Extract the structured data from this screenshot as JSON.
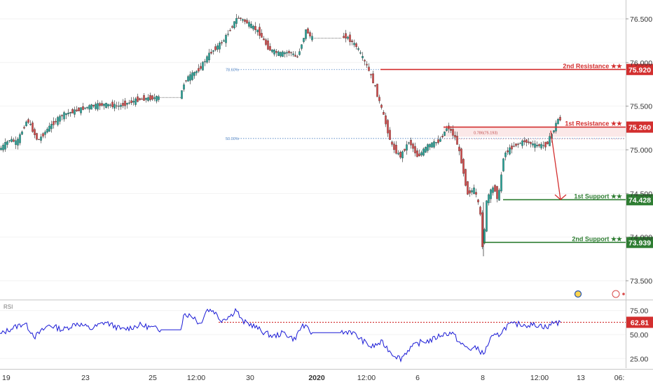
{
  "chart_data": [
    {
      "type": "candlestick",
      "title": "",
      "xlabel": "",
      "ylabel": "",
      "ylim": [
        73.3,
        76.7
      ],
      "y_ticks": [
        "76.500",
        "76.000",
        "75.500",
        "75.000",
        "74.500",
        "74.000",
        "73.500"
      ],
      "y_tick_values": [
        76.5,
        76.0,
        75.5,
        75.0,
        74.5,
        74.0,
        73.5
      ],
      "x_ticks": [
        "19",
        "23",
        "25",
        "12:00",
        "30",
        "2020",
        "12:00",
        "6",
        "8",
        "12:00",
        "13",
        "06:"
      ],
      "x_tick_index": [
        3,
        122,
        218,
        280,
        357,
        452,
        523,
        596,
        689,
        770,
        829,
        884
      ],
      "x_range": [
        0,
        932
      ],
      "price_path": [
        {
          "i": 0,
          "v": 75.0
        },
        {
          "i": 15,
          "v": 75.12
        },
        {
          "i": 25,
          "v": 75.08
        },
        {
          "i": 40,
          "v": 75.35
        },
        {
          "i": 55,
          "v": 75.1
        },
        {
          "i": 70,
          "v": 75.25
        },
        {
          "i": 90,
          "v": 75.4
        },
        {
          "i": 110,
          "v": 75.45
        },
        {
          "i": 130,
          "v": 75.5
        },
        {
          "i": 150,
          "v": 75.52
        },
        {
          "i": 170,
          "v": 75.5
        },
        {
          "i": 200,
          "v": 75.58
        },
        {
          "i": 230,
          "v": 75.6
        },
        {
          "i": 258,
          "v": 75.6
        },
        {
          "i": 265,
          "v": 75.8
        },
        {
          "i": 285,
          "v": 75.92
        },
        {
          "i": 300,
          "v": 76.1
        },
        {
          "i": 320,
          "v": 76.25
        },
        {
          "i": 340,
          "v": 76.52
        },
        {
          "i": 355,
          "v": 76.45
        },
        {
          "i": 370,
          "v": 76.35
        },
        {
          "i": 385,
          "v": 76.15
        },
        {
          "i": 400,
          "v": 76.1
        },
        {
          "i": 415,
          "v": 76.12
        },
        {
          "i": 425,
          "v": 76.05
        },
        {
          "i": 438,
          "v": 76.38
        },
        {
          "i": 445,
          "v": 76.28
        },
        {
          "i": 487,
          "v": 76.28
        },
        {
          "i": 495,
          "v": 76.3
        },
        {
          "i": 510,
          "v": 76.18
        },
        {
          "i": 525,
          "v": 75.95
        },
        {
          "i": 535,
          "v": 75.75
        },
        {
          "i": 548,
          "v": 75.4
        },
        {
          "i": 560,
          "v": 75.05
        },
        {
          "i": 572,
          "v": 74.92
        },
        {
          "i": 585,
          "v": 75.1
        },
        {
          "i": 597,
          "v": 74.92
        },
        {
          "i": 612,
          "v": 75.05
        },
        {
          "i": 628,
          "v": 75.1
        },
        {
          "i": 640,
          "v": 75.27
        },
        {
          "i": 652,
          "v": 75.12
        },
        {
          "i": 660,
          "v": 74.85
        },
        {
          "i": 668,
          "v": 74.5
        },
        {
          "i": 678,
          "v": 74.55
        },
        {
          "i": 686,
          "v": 74.3
        },
        {
          "i": 690,
          "v": 73.85
        },
        {
          "i": 696,
          "v": 74.45
        },
        {
          "i": 706,
          "v": 74.58
        },
        {
          "i": 712,
          "v": 74.42
        },
        {
          "i": 720,
          "v": 74.95
        },
        {
          "i": 735,
          "v": 75.05
        },
        {
          "i": 750,
          "v": 75.1
        },
        {
          "i": 765,
          "v": 75.05
        },
        {
          "i": 780,
          "v": 75.05
        },
        {
          "i": 790,
          "v": 75.2
        },
        {
          "i": 797,
          "v": 75.35
        }
      ],
      "levels": [
        {
          "label": "2nd Resistance ★★",
          "value": 75.92,
          "value_label": "75.920",
          "color": "#d32f2f",
          "from_i": 543
        },
        {
          "label": "1st Resistance ★★",
          "value": 75.26,
          "value_label": "75.260",
          "color": "#d32f2f",
          "from_i": 633
        },
        {
          "label": "1st Support ★★",
          "value": 74.428,
          "value_label": "74.428",
          "color": "#2e7d32",
          "from_i": 718
        },
        {
          "label": "2nd Support ★★",
          "value": 73.939,
          "value_label": "73.939",
          "color": "#2e7d32",
          "from_i": 690
        }
      ],
      "fib_levels": [
        {
          "label": "78.60%",
          "value": 75.92,
          "from_i": 340
        },
        {
          "label": "50.00%",
          "value": 75.13,
          "from_i": 340
        }
      ],
      "zone": {
        "label": "0.786(75.193)",
        "top": 75.26,
        "bottom": 75.15,
        "from_i": 633
      },
      "projection": {
        "from_i": 786,
        "from_v": 75.22,
        "to_i": 800,
        "to_v": 74.43,
        "color": "#d32f2f"
      },
      "up_color": "#26a69a",
      "down_color": "#d84a4a"
    },
    {
      "type": "line",
      "title": "RSI",
      "xlabel": "",
      "ylabel": "",
      "ylim": [
        15,
        85
      ],
      "y_ticks": [
        "75.00",
        "50.00",
        "25.00"
      ],
      "y_tick_values": [
        75,
        50,
        25
      ],
      "current_value": 62.81,
      "current_label": "62.81",
      "line_color": "#1a1ad6",
      "level_color": "#d32f2f",
      "level_from_i": 312,
      "series": [
        {
          "values_path": [
            {
              "i": 0,
              "v": 50
            },
            {
              "i": 15,
              "v": 56
            },
            {
              "i": 35,
              "v": 62
            },
            {
              "i": 50,
              "v": 48
            },
            {
              "i": 70,
              "v": 60
            },
            {
              "i": 90,
              "v": 55
            },
            {
              "i": 110,
              "v": 62
            },
            {
              "i": 130,
              "v": 56
            },
            {
              "i": 150,
              "v": 63
            },
            {
              "i": 175,
              "v": 55
            },
            {
              "i": 200,
              "v": 60
            },
            {
              "i": 230,
              "v": 55
            },
            {
              "i": 258,
              "v": 55
            },
            {
              "i": 262,
              "v": 72
            },
            {
              "i": 278,
              "v": 68
            },
            {
              "i": 285,
              "v": 60
            },
            {
              "i": 295,
              "v": 76
            },
            {
              "i": 305,
              "v": 75
            },
            {
              "i": 315,
              "v": 65
            },
            {
              "i": 330,
              "v": 70
            },
            {
              "i": 337,
              "v": 77
            },
            {
              "i": 345,
              "v": 64
            },
            {
              "i": 360,
              "v": 60
            },
            {
              "i": 375,
              "v": 53
            },
            {
              "i": 390,
              "v": 48
            },
            {
              "i": 405,
              "v": 52
            },
            {
              "i": 420,
              "v": 45
            },
            {
              "i": 432,
              "v": 60
            },
            {
              "i": 445,
              "v": 52
            },
            {
              "i": 490,
              "v": 52
            },
            {
              "i": 500,
              "v": 54
            },
            {
              "i": 515,
              "v": 45
            },
            {
              "i": 530,
              "v": 37
            },
            {
              "i": 545,
              "v": 42
            },
            {
              "i": 560,
              "v": 30
            },
            {
              "i": 572,
              "v": 25
            },
            {
              "i": 585,
              "v": 36
            },
            {
              "i": 600,
              "v": 42
            },
            {
              "i": 615,
              "v": 44
            },
            {
              "i": 630,
              "v": 50
            },
            {
              "i": 645,
              "v": 52
            },
            {
              "i": 658,
              "v": 40
            },
            {
              "i": 670,
              "v": 35
            },
            {
              "i": 682,
              "v": 36
            },
            {
              "i": 690,
              "v": 29
            },
            {
              "i": 700,
              "v": 46
            },
            {
              "i": 712,
              "v": 50
            },
            {
              "i": 725,
              "v": 60
            },
            {
              "i": 740,
              "v": 61
            },
            {
              "i": 755,
              "v": 60
            },
            {
              "i": 770,
              "v": 60
            },
            {
              "i": 782,
              "v": 57
            },
            {
              "i": 790,
              "v": 64
            },
            {
              "i": 797,
              "v": 62
            }
          ]
        }
      ]
    }
  ],
  "badges": {
    "up_arrow_hint": "↑"
  }
}
